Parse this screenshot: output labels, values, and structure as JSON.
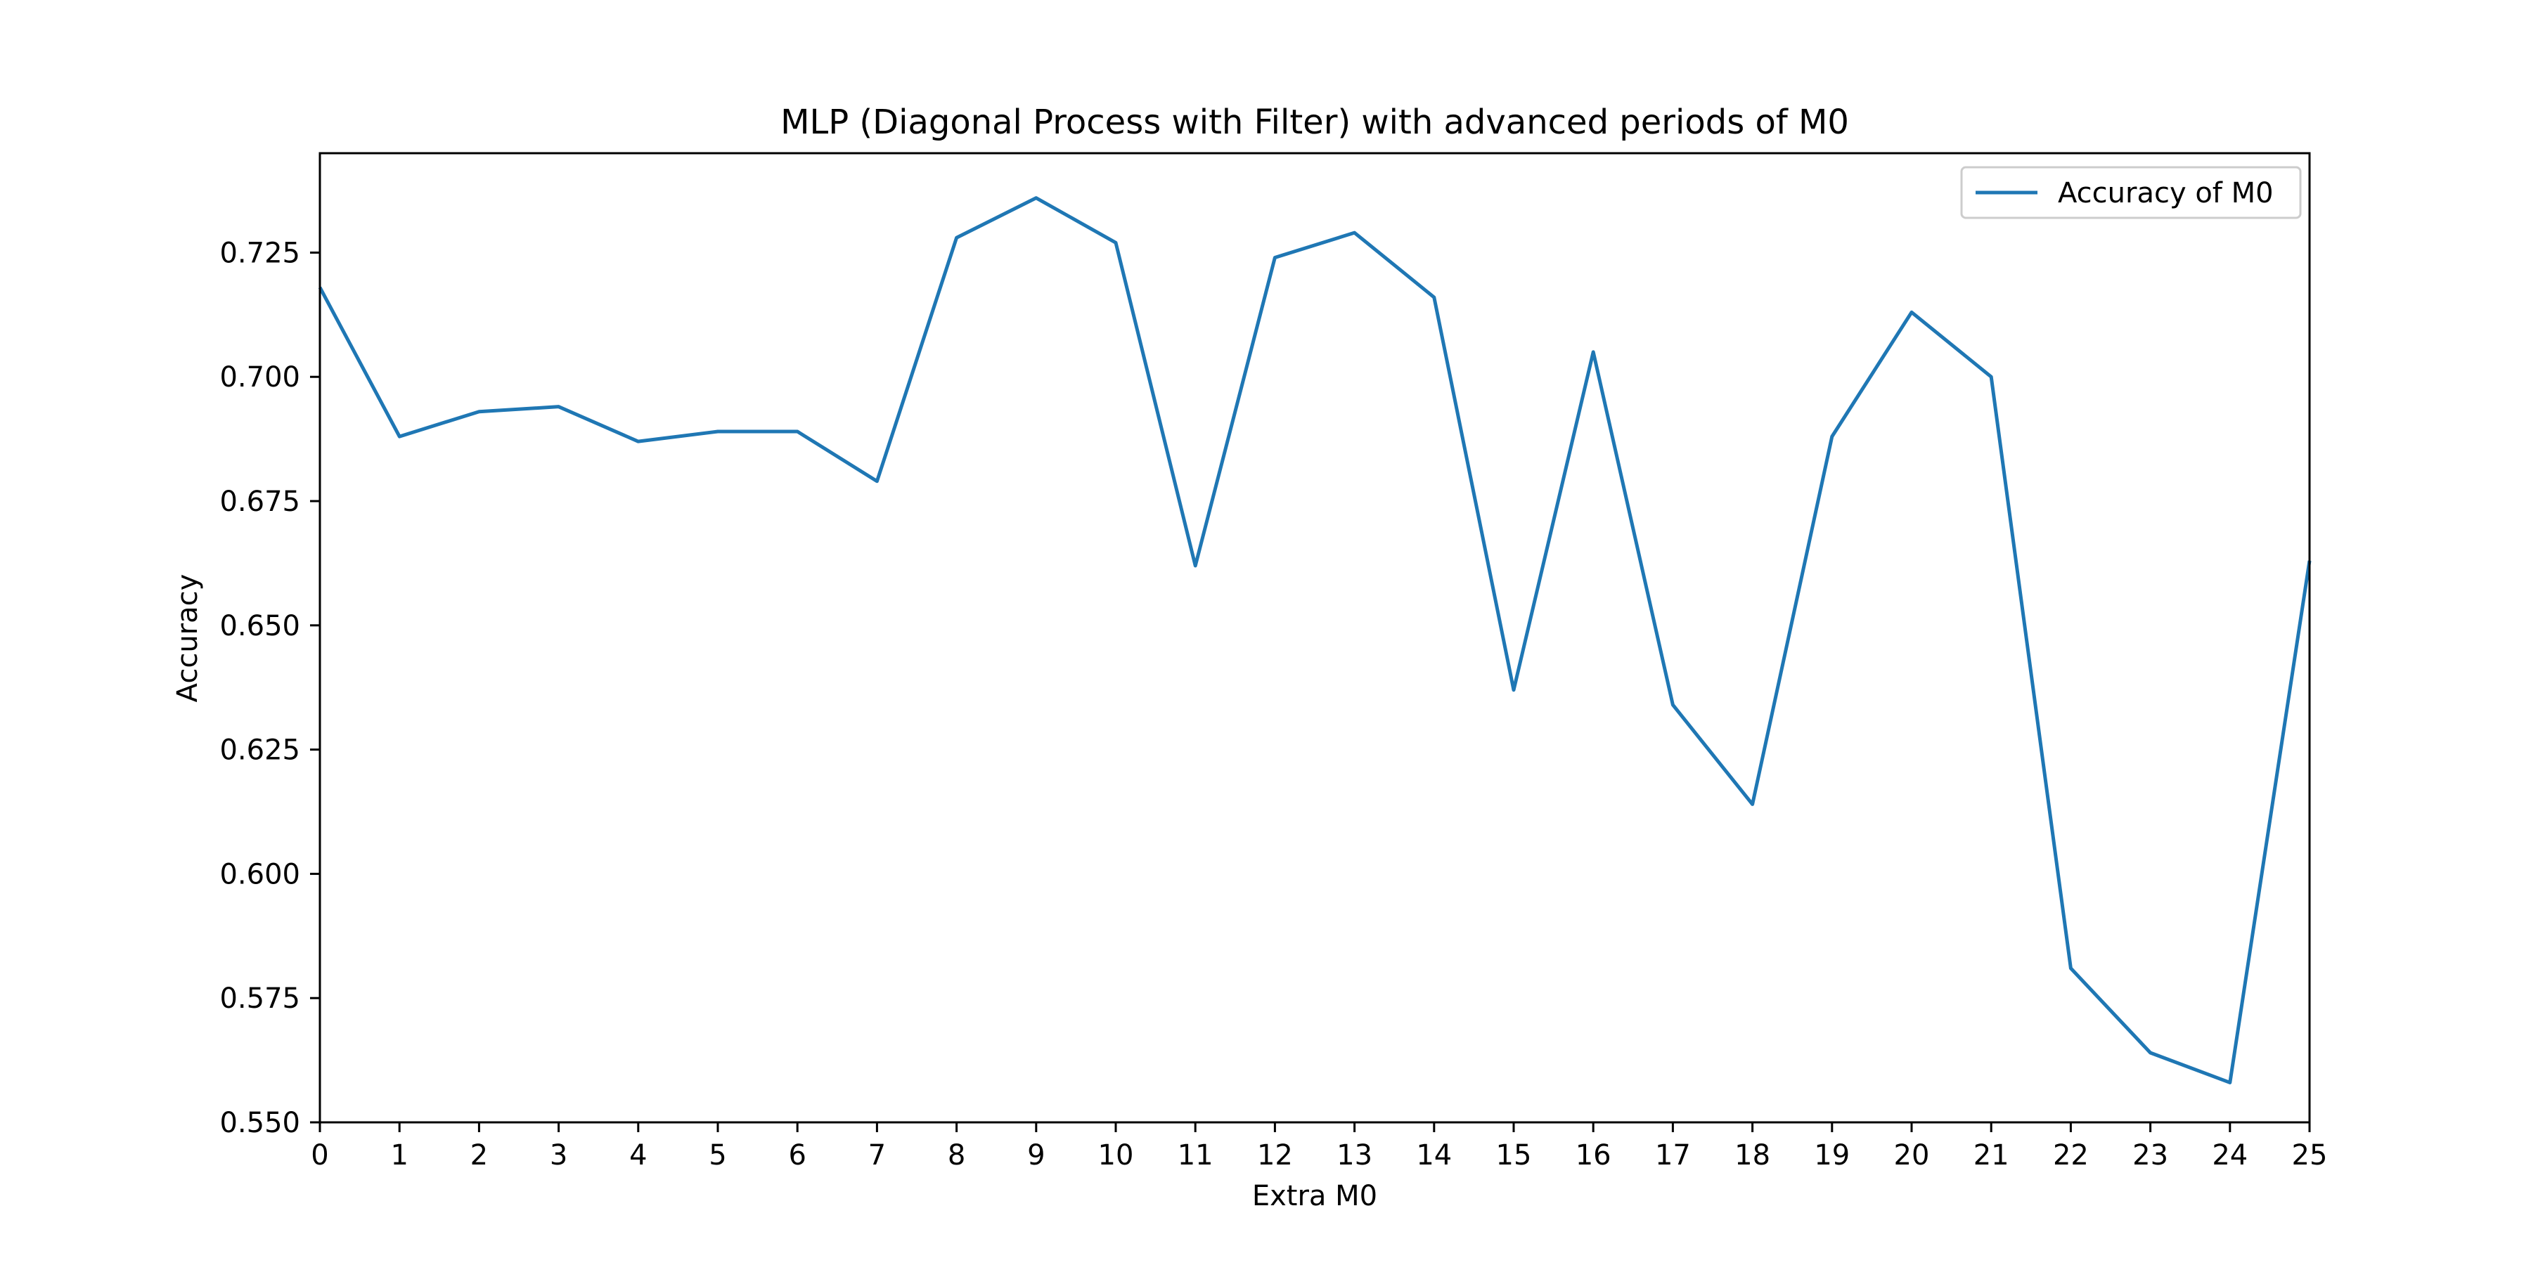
{
  "chart_data": {
    "type": "line",
    "title": "MLP (Diagonal Process with Filter) with advanced periods of M0",
    "xlabel": "Extra M0",
    "ylabel": "Accuracy",
    "xlim": [
      0,
      25
    ],
    "ylim": [
      0.55,
      0.745
    ],
    "x_ticks": [
      0,
      1,
      2,
      3,
      4,
      5,
      6,
      7,
      8,
      9,
      10,
      11,
      12,
      13,
      14,
      15,
      16,
      17,
      18,
      19,
      20,
      21,
      22,
      23,
      24,
      25
    ],
    "y_ticks": [
      "0.550",
      "0.575",
      "0.600",
      "0.625",
      "0.650",
      "0.675",
      "0.700",
      "0.725"
    ],
    "grid": false,
    "legend_position": "top-right",
    "series": [
      {
        "name": "Accuracy of M0",
        "color": "#1f77b4",
        "x": [
          0,
          1,
          2,
          3,
          4,
          5,
          6,
          7,
          8,
          9,
          10,
          11,
          12,
          13,
          14,
          15,
          16,
          17,
          18,
          19,
          20,
          21,
          22,
          23,
          24,
          25
        ],
        "values": [
          0.718,
          0.688,
          0.693,
          0.694,
          0.687,
          0.689,
          0.689,
          0.679,
          0.728,
          0.736,
          0.727,
          0.662,
          0.724,
          0.729,
          0.716,
          0.637,
          0.705,
          0.634,
          0.614,
          0.688,
          0.713,
          0.7,
          0.581,
          0.564,
          0.558,
          0.663
        ]
      }
    ]
  }
}
